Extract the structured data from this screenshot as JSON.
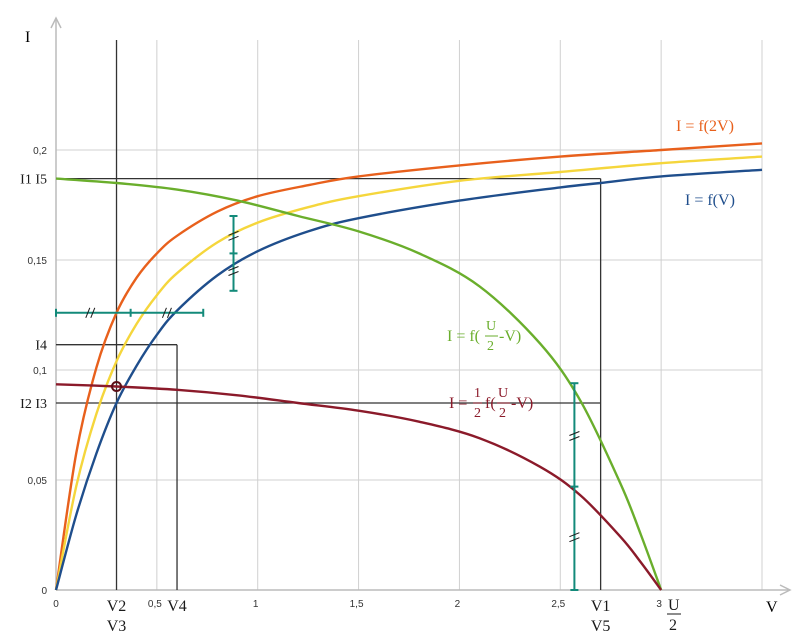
{
  "chart_data": {
    "type": "line",
    "title": "",
    "xlabel": "V",
    "ylabel": "I",
    "xlim": [
      0,
      3.5
    ],
    "ylim": [
      0,
      0.25
    ],
    "grid": true,
    "x_ticks": [
      {
        "value": 0,
        "label": "0"
      },
      {
        "value": 0.5,
        "label": "0,5"
      },
      {
        "value": 1,
        "label": "1"
      },
      {
        "value": 1.5,
        "label": "1,5"
      },
      {
        "value": 2,
        "label": "2"
      },
      {
        "value": 2.5,
        "label": "2,5"
      },
      {
        "value": 3,
        "label": "3"
      }
    ],
    "y_ticks": [
      {
        "value": 0,
        "label": "0"
      },
      {
        "value": 0.05,
        "label": "0,05"
      },
      {
        "value": 0.1,
        "label": "0,1"
      },
      {
        "value": 0.15,
        "label": "0,15"
      },
      {
        "value": 0.2,
        "label": "0,2"
      }
    ],
    "colors": {
      "f_V": "#1f4e8c",
      "f_2V": "#e8601c",
      "f_mid": "#f5d63c",
      "f_U2_minus_V": "#6aae2c",
      "half_f": "#8b1a2a",
      "markers": "#138a7a",
      "guides": "#333333",
      "grid": "#d0d0d0"
    },
    "series": [
      {
        "name": "I = f(2V)",
        "color": "#e8601c",
        "x": [
          0,
          0.1,
          0.2,
          0.3,
          0.4,
          0.5,
          0.6,
          0.8,
          1,
          1.25,
          1.5,
          2,
          2.5,
          3,
          3.5
        ],
        "y": [
          0,
          0.062,
          0.101,
          0.126,
          0.142,
          0.153,
          0.161,
          0.172,
          0.179,
          0.184,
          0.188,
          0.193,
          0.197,
          0.2,
          0.203
        ]
      },
      {
        "name": "",
        "color": "#f5d63c",
        "x": [
          0,
          0.1,
          0.2,
          0.3,
          0.4,
          0.5,
          0.6,
          0.8,
          1,
          1.25,
          1.5,
          2,
          2.5,
          3,
          3.5
        ],
        "y": [
          0,
          0.047,
          0.08,
          0.104,
          0.121,
          0.134,
          0.144,
          0.158,
          0.167,
          0.174,
          0.179,
          0.186,
          0.19,
          0.194,
          0.197
        ]
      },
      {
        "name": "I = f(V)",
        "color": "#1f4e8c",
        "x": [
          0,
          0.1,
          0.2,
          0.3,
          0.4,
          0.5,
          0.6,
          0.8,
          1,
          1.25,
          1.5,
          2,
          2.5,
          2.7,
          3,
          3.5
        ],
        "y": [
          0,
          0.034,
          0.062,
          0.085,
          0.102,
          0.116,
          0.127,
          0.143,
          0.154,
          0.163,
          0.169,
          0.177,
          0.183,
          0.185,
          0.188,
          0.191
        ]
      },
      {
        "name": "I = f(U/2-V)",
        "color": "#6aae2c",
        "x": [
          0,
          0.3,
          0.6,
          0.9,
          1.2,
          1.5,
          1.8,
          2.1,
          2.4,
          2.6,
          2.8,
          2.9,
          3
        ],
        "y": [
          0.187,
          0.185,
          0.182,
          0.177,
          0.17,
          0.163,
          0.153,
          0.138,
          0.112,
          0.086,
          0.048,
          0.025,
          0
        ]
      },
      {
        "name": "I = 1/2 f(U/2-V)",
        "color": "#8b1a2a",
        "x": [
          0,
          0.3,
          0.6,
          0.9,
          1.2,
          1.5,
          1.8,
          2.1,
          2.4,
          2.6,
          2.8,
          2.9,
          3
        ],
        "y": [
          0.0935,
          0.0925,
          0.091,
          0.0885,
          0.085,
          0.0815,
          0.0765,
          0.069,
          0.056,
          0.043,
          0.024,
          0.0125,
          0
        ]
      }
    ],
    "guide_points": [
      {
        "x": 0.3,
        "y": 0.187,
        "ylabel": "I1 I5",
        "xlabel": "V2",
        "xlabel2": "V3"
      },
      {
        "x": 0.3,
        "y": 0.0925,
        "ylabel": "",
        "xlabel": "",
        "xlabel2": ""
      },
      {
        "x": 0.3,
        "y": 0.085,
        "ylabel": "I2 I3",
        "xlabel": "",
        "xlabel2": ""
      },
      {
        "x": 0.6,
        "y": 0.1115,
        "ylabel": "I4",
        "xlabel": "V4",
        "xlabel2": ""
      },
      {
        "x": 2.7,
        "y": 0.187,
        "ylabel": "",
        "xlabel": "V1",
        "xlabel2": "V5"
      }
    ],
    "marked_point": {
      "x": 0.3,
      "y": 0.0925
    },
    "annotations": {
      "f2v": "I = f(2V)",
      "fv": "I = f(V)",
      "fu_prefix": "I = f(",
      "fu_num": "U",
      "fu_den": "2",
      "fu_suffix": "-V)",
      "half_prefix": "I = ",
      "half_num": "1",
      "half_den": "2",
      "half_mid": "f(",
      "half_num2": "U",
      "half_den2": "2",
      "half_suffix": "-V)",
      "u2_num": "U",
      "u2_den": "2"
    }
  }
}
